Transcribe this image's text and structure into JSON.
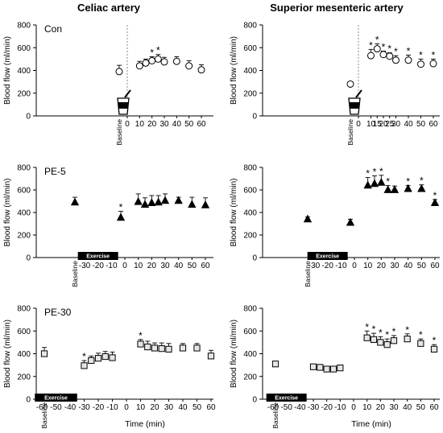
{
  "columns": [
    {
      "title": "Celiac artery"
    },
    {
      "title": "Superior mesenteric artery"
    }
  ],
  "colors": {
    "marker_fill_light": "#ffffff",
    "marker_fill_dark": "#000000",
    "marker_fill_gray": "#e6e6e6",
    "axis": "#000000",
    "exercise_bar": "#000000",
    "dotted_line": "#888888"
  },
  "chart_data": [
    {
      "type": "scatter",
      "panel": "celiac-con",
      "series_label": "Con",
      "marker": "circle",
      "ylabel": "Blood flow (ml/min)",
      "xlabel": "",
      "ylim": [
        0,
        800
      ],
      "yticks": [
        "0",
        "200",
        "400",
        "600",
        "800"
      ],
      "xticks": [
        "0",
        "10",
        "20",
        "30",
        "40",
        "50",
        "60"
      ],
      "baseline_label": "Baseline",
      "exercise_label": "",
      "has_meal_icon": true,
      "points": [
        {
          "x": "Baseline",
          "y": 390,
          "err": 55,
          "sig": false
        },
        {
          "x": 10,
          "y": 440,
          "err": 40,
          "sig": false
        },
        {
          "x": 15,
          "y": 465,
          "err": 35,
          "sig": false
        },
        {
          "x": 20,
          "y": 485,
          "err": 35,
          "sig": true
        },
        {
          "x": 25,
          "y": 500,
          "err": 40,
          "sig": true
        },
        {
          "x": 30,
          "y": 475,
          "err": 40,
          "sig": false
        },
        {
          "x": 40,
          "y": 480,
          "err": 40,
          "sig": false
        },
        {
          "x": 50,
          "y": 440,
          "err": 45,
          "sig": false
        },
        {
          "x": 60,
          "y": 405,
          "err": 45,
          "sig": false
        }
      ]
    },
    {
      "type": "scatter",
      "panel": "sma-con",
      "series_label": "",
      "marker": "circle",
      "ylabel": "Blood flow (ml/min)",
      "xlabel": "",
      "ylim": [
        0,
        800
      ],
      "yticks": [
        "0",
        "200",
        "400",
        "600",
        "800"
      ],
      "xticks": [
        "0",
        "10",
        "15",
        "20",
        "25",
        "30",
        "40",
        "50",
        "60"
      ],
      "baseline_label": "Baseline",
      "exercise_label": "",
      "has_meal_icon": true,
      "points": [
        {
          "x": "Baseline",
          "y": 280,
          "err": 20,
          "sig": false
        },
        {
          "x": 10,
          "y": 530,
          "err": 55,
          "sig": true
        },
        {
          "x": 15,
          "y": 590,
          "err": 45,
          "sig": true
        },
        {
          "x": 20,
          "y": 540,
          "err": 30,
          "sig": true
        },
        {
          "x": 25,
          "y": 525,
          "err": 30,
          "sig": true
        },
        {
          "x": 30,
          "y": 490,
          "err": 40,
          "sig": true
        },
        {
          "x": 40,
          "y": 490,
          "err": 45,
          "sig": true
        },
        {
          "x": 50,
          "y": 455,
          "err": 45,
          "sig": true
        },
        {
          "x": 60,
          "y": 460,
          "err": 40,
          "sig": true
        }
      ]
    },
    {
      "type": "scatter",
      "panel": "celiac-pe5",
      "series_label": "PE-5",
      "marker": "triangle",
      "ylabel": "Blood flow (ml/min)",
      "xlabel": "",
      "ylim": [
        0,
        800
      ],
      "yticks": [
        "0",
        "200",
        "400",
        "600",
        "800"
      ],
      "xticks": [
        "-30",
        "-20",
        "-10",
        "0",
        "10",
        "20",
        "30",
        "40",
        "50",
        "60"
      ],
      "baseline_label": "Baseline",
      "exercise_label": "Exercise",
      "exercise_range": [
        -35,
        -5
      ],
      "has_meal_icon": false,
      "points": [
        {
          "x": "Baseline",
          "y": 490,
          "err": 45,
          "sig": false
        },
        {
          "x": -3,
          "y": 355,
          "err": 55,
          "sig": true
        },
        {
          "x": 10,
          "y": 495,
          "err": 70,
          "sig": false
        },
        {
          "x": 15,
          "y": 470,
          "err": 60,
          "sig": false
        },
        {
          "x": 20,
          "y": 485,
          "err": 65,
          "sig": false
        },
        {
          "x": 25,
          "y": 490,
          "err": 60,
          "sig": false
        },
        {
          "x": 30,
          "y": 505,
          "err": 60,
          "sig": false
        },
        {
          "x": 40,
          "y": 505,
          "err": 30,
          "sig": false
        },
        {
          "x": 50,
          "y": 470,
          "err": 65,
          "sig": false
        },
        {
          "x": 60,
          "y": 465,
          "err": 65,
          "sig": false
        }
      ]
    },
    {
      "type": "scatter",
      "panel": "sma-pe5",
      "series_label": "",
      "marker": "triangle",
      "ylabel": "Blood flow (ml/min)",
      "xlabel": "",
      "ylim": [
        0,
        800
      ],
      "yticks": [
        "0",
        "200",
        "400",
        "600",
        "800"
      ],
      "xticks": [
        "-30",
        "-20",
        "-10",
        "0",
        "10",
        "20",
        "30",
        "40",
        "50",
        "60"
      ],
      "baseline_label": "Baseline",
      "exercise_label": "Exercise",
      "exercise_range": [
        -35,
        -5
      ],
      "has_meal_icon": false,
      "points": [
        {
          "x": "Baseline",
          "y": 340,
          "err": 20,
          "sig": false
        },
        {
          "x": -3,
          "y": 310,
          "err": 30,
          "sig": false
        },
        {
          "x": 10,
          "y": 640,
          "err": 70,
          "sig": true
        },
        {
          "x": 15,
          "y": 655,
          "err": 70,
          "sig": true
        },
        {
          "x": 20,
          "y": 665,
          "err": 65,
          "sig": true
        },
        {
          "x": 25,
          "y": 600,
          "err": 40,
          "sig": true
        },
        {
          "x": 30,
          "y": 600,
          "err": 35,
          "sig": false
        },
        {
          "x": 40,
          "y": 610,
          "err": 30,
          "sig": true
        },
        {
          "x": 50,
          "y": 610,
          "err": 35,
          "sig": true
        },
        {
          "x": 60,
          "y": 485,
          "err": 30,
          "sig": true
        }
      ]
    },
    {
      "type": "scatter",
      "panel": "celiac-pe30",
      "series_label": "PE-30",
      "marker": "square",
      "ylabel": "Blood flow (ml/min)",
      "xlabel": "Time (min)",
      "ylim": [
        0,
        800
      ],
      "yticks": [
        "0",
        "200",
        "400",
        "600",
        "800"
      ],
      "xticks": [
        "-60",
        "-50",
        "-40",
        "-30",
        "-20",
        "-10",
        "0",
        "10",
        "20",
        "30",
        "40",
        "50",
        "60"
      ],
      "baseline_label": "Baseline",
      "exercise_label": "Exercise",
      "exercise_range": [
        -65,
        -35
      ],
      "has_meal_icon": false,
      "points": [
        {
          "x": "Baseline",
          "y": 400,
          "err": 55,
          "sig": false
        },
        {
          "x": -30,
          "y": 295,
          "err": 45,
          "sig": true
        },
        {
          "x": -25,
          "y": 340,
          "err": 40,
          "sig": false
        },
        {
          "x": -20,
          "y": 360,
          "err": 45,
          "sig": false
        },
        {
          "x": -15,
          "y": 375,
          "err": 45,
          "sig": false
        },
        {
          "x": -10,
          "y": 365,
          "err": 50,
          "sig": false
        },
        {
          "x": 10,
          "y": 485,
          "err": 40,
          "sig": true
        },
        {
          "x": 15,
          "y": 460,
          "err": 50,
          "sig": false
        },
        {
          "x": 20,
          "y": 450,
          "err": 45,
          "sig": false
        },
        {
          "x": 25,
          "y": 445,
          "err": 50,
          "sig": false
        },
        {
          "x": 30,
          "y": 440,
          "err": 50,
          "sig": false
        },
        {
          "x": 40,
          "y": 450,
          "err": 40,
          "sig": false
        },
        {
          "x": 50,
          "y": 450,
          "err": 40,
          "sig": false
        },
        {
          "x": 60,
          "y": 380,
          "err": 50,
          "sig": false
        }
      ]
    },
    {
      "type": "scatter",
      "panel": "sma-pe30",
      "series_label": "",
      "marker": "square",
      "ylabel": "Blood flow (ml/min)",
      "xlabel": "Time (min)",
      "ylim": [
        0,
        800
      ],
      "yticks": [
        "0",
        "200",
        "400",
        "600",
        "800"
      ],
      "xticks": [
        "-60",
        "-50",
        "-40",
        "-30",
        "-20",
        "-10",
        "0",
        "10",
        "20",
        "30",
        "40",
        "50",
        "60"
      ],
      "baseline_label": "Baseline",
      "exercise_label": "Exercise",
      "exercise_range": [
        -65,
        -35
      ],
      "has_meal_icon": false,
      "points": [
        {
          "x": "Baseline",
          "y": 310,
          "err": 15,
          "sig": false
        },
        {
          "x": -30,
          "y": 285,
          "err": 20,
          "sig": false
        },
        {
          "x": -25,
          "y": 280,
          "err": 25,
          "sig": false
        },
        {
          "x": -20,
          "y": 265,
          "err": 25,
          "sig": false
        },
        {
          "x": -15,
          "y": 265,
          "err": 25,
          "sig": false
        },
        {
          "x": -10,
          "y": 275,
          "err": 25,
          "sig": false
        },
        {
          "x": 10,
          "y": 540,
          "err": 60,
          "sig": true
        },
        {
          "x": 15,
          "y": 525,
          "err": 55,
          "sig": true
        },
        {
          "x": 20,
          "y": 500,
          "err": 50,
          "sig": true
        },
        {
          "x": 25,
          "y": 480,
          "err": 50,
          "sig": true
        },
        {
          "x": 30,
          "y": 515,
          "err": 45,
          "sig": true
        },
        {
          "x": 40,
          "y": 530,
          "err": 45,
          "sig": true
        },
        {
          "x": 50,
          "y": 490,
          "err": 40,
          "sig": true
        },
        {
          "x": 60,
          "y": 440,
          "err": 40,
          "sig": true
        }
      ]
    }
  ]
}
